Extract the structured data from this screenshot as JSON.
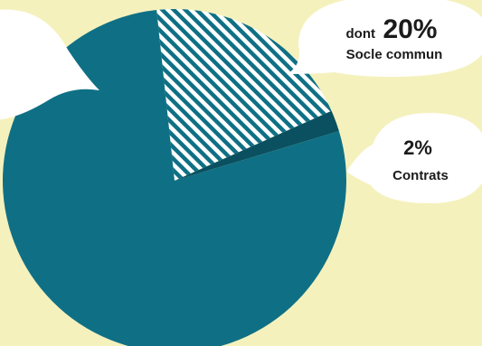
{
  "chart_data": {
    "type": "pie",
    "colors": {
      "background": "#f5f1bd",
      "main_slice": "#0f7085",
      "hatch_base": "#ffffff",
      "hatch_stripe": "#0f7085",
      "contrats_slice": "#0a5060",
      "callout": "#ffffff"
    },
    "slices": [
      {
        "key": "socle",
        "value": 20,
        "pattern": "hatched"
      },
      {
        "key": "contrats",
        "value": 2,
        "pattern": "dark"
      },
      {
        "key": "main",
        "value": 78,
        "pattern": "solid"
      }
    ],
    "callouts": {
      "socle": {
        "prefix": "dont",
        "value_text": "20%",
        "label": "Socle commun"
      },
      "contrats": {
        "value_text": "2%",
        "label": "Contrats"
      }
    }
  }
}
